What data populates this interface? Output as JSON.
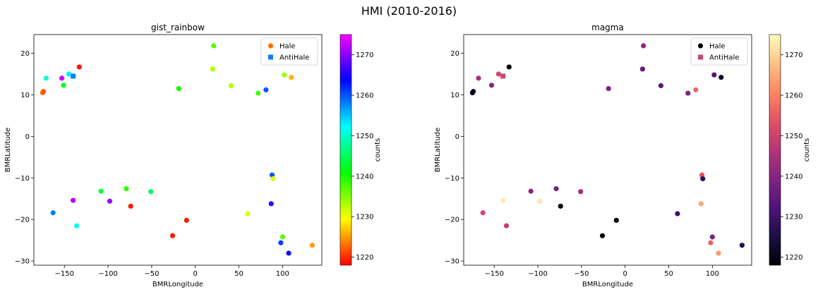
{
  "suptitle": "HMI (2010-2016)",
  "chart_data": [
    {
      "type": "scatter",
      "title": "gist_rainbow",
      "xlabel": "BMRLongitude",
      "ylabel": "BMRLatitude",
      "xlim": [
        -185,
        145
      ],
      "ylim": [
        -31,
        24.5
      ],
      "xticks": [
        -150,
        -100,
        -50,
        0,
        50,
        100
      ],
      "yticks": [
        -30,
        -20,
        -10,
        0,
        10,
        20
      ],
      "colormap": "gist_rainbow",
      "colorbar": {
        "label": "counts",
        "range": [
          1218,
          1275
        ],
        "ticks": [
          1220,
          1230,
          1240,
          1250,
          1260,
          1270
        ]
      },
      "legend": {
        "location": "upper right",
        "entries": [
          {
            "label": "Hale",
            "marker": "circle"
          },
          {
            "label": "AntiHale",
            "marker": "square"
          }
        ]
      },
      "series": [
        {
          "name": "Hale",
          "marker": "circle",
          "points": [
            {
              "x": -175,
              "y": 10.5,
              "counts": 1223
            },
            {
              "x": -174,
              "y": 10.8,
              "counts": 1222
            },
            {
              "x": -171,
              "y": 14,
              "counts": 1250
            },
            {
              "x": -153,
              "y": 14,
              "counts": 1273
            },
            {
              "x": -151,
              "y": 12.3,
              "counts": 1242
            },
            {
              "x": -145,
              "y": 15,
              "counts": 1253
            },
            {
              "x": -133,
              "y": 16.7,
              "counts": 1219
            },
            {
              "x": -19,
              "y": 11.5,
              "counts": 1240
            },
            {
              "x": 20,
              "y": 16.2,
              "counts": 1233
            },
            {
              "x": 21,
              "y": 21.8,
              "counts": 1237
            },
            {
              "x": 41,
              "y": 12.2,
              "counts": 1233
            },
            {
              "x": 72,
              "y": 10.4,
              "counts": 1238
            },
            {
              "x": 81,
              "y": 11.2,
              "counts": 1260
            },
            {
              "x": 102,
              "y": 14.8,
              "counts": 1234
            },
            {
              "x": 110,
              "y": 14.2,
              "counts": 1226
            },
            {
              "x": -163,
              "y": -18.4,
              "counts": 1258
            },
            {
              "x": -140,
              "y": -15.4,
              "counts": 1272
            },
            {
              "x": -136,
              "y": -21.5,
              "counts": 1252
            },
            {
              "x": -108,
              "y": -13.2,
              "counts": 1244
            },
            {
              "x": -98,
              "y": -15.6,
              "counts": 1271
            },
            {
              "x": -79,
              "y": -12.6,
              "counts": 1239
            },
            {
              "x": -74,
              "y": -16.8,
              "counts": 1219
            },
            {
              "x": -51,
              "y": -13.3,
              "counts": 1245
            },
            {
              "x": -26,
              "y": -23.9,
              "counts": 1219
            },
            {
              "x": -10,
              "y": -20.2,
              "counts": 1219
            },
            {
              "x": 60,
              "y": -18.6,
              "counts": 1231
            },
            {
              "x": 87,
              "y": -16.2,
              "counts": 1266
            },
            {
              "x": 88,
              "y": -9.3,
              "counts": 1260
            },
            {
              "x": 89,
              "y": -10.2,
              "counts": 1231
            },
            {
              "x": 98,
              "y": -25.6,
              "counts": 1261
            },
            {
              "x": 100,
              "y": -24.2,
              "counts": 1237
            },
            {
              "x": 107,
              "y": -28.1,
              "counts": 1263
            },
            {
              "x": 134,
              "y": -26.2,
              "counts": 1225
            }
          ]
        },
        {
          "name": "AntiHale",
          "marker": "square",
          "points": [
            {
              "x": -140,
              "y": 14.5,
              "counts": 1258
            }
          ]
        }
      ]
    },
    {
      "type": "scatter",
      "title": "magma",
      "xlabel": "BMRLongitude",
      "ylabel": "BMRLatitude",
      "xlim": [
        -185,
        145
      ],
      "ylim": [
        -31,
        24.5
      ],
      "xticks": [
        -150,
        -100,
        -50,
        0,
        50,
        100
      ],
      "yticks": [
        -30,
        -20,
        -10,
        0,
        10,
        20
      ],
      "colormap": "magma",
      "colorbar": {
        "label": "counts",
        "range": [
          1218,
          1275
        ],
        "ticks": [
          1220,
          1230,
          1240,
          1250,
          1260,
          1270
        ]
      },
      "legend": {
        "location": "upper right",
        "entries": [
          {
            "label": "Hale",
            "marker": "circle"
          },
          {
            "label": "AntiHale",
            "marker": "square"
          }
        ]
      },
      "series": [
        {
          "name": "Hale",
          "marker": "circle",
          "points": [
            {
              "x": -175,
              "y": 10.5,
              "counts": 1219
            },
            {
              "x": -174,
              "y": 10.8,
              "counts": 1220
            },
            {
              "x": -168,
              "y": 14,
              "counts": 1244
            },
            {
              "x": -153,
              "y": 12.3,
              "counts": 1240
            },
            {
              "x": -145,
              "y": 15,
              "counts": 1250
            },
            {
              "x": -133,
              "y": 16.7,
              "counts": 1218
            },
            {
              "x": -19,
              "y": 11.5,
              "counts": 1239
            },
            {
              "x": 20,
              "y": 16.2,
              "counts": 1236
            },
            {
              "x": 21,
              "y": 21.8,
              "counts": 1241
            },
            {
              "x": 41,
              "y": 12.2,
              "counts": 1234
            },
            {
              "x": 72,
              "y": 10.4,
              "counts": 1239
            },
            {
              "x": 81,
              "y": 11.2,
              "counts": 1257
            },
            {
              "x": 102,
              "y": 14.8,
              "counts": 1233
            },
            {
              "x": 110,
              "y": 14.2,
              "counts": 1222
            },
            {
              "x": -163,
              "y": -18.4,
              "counts": 1251
            },
            {
              "x": -140,
              "y": -15.4,
              "counts": 1273
            },
            {
              "x": -136,
              "y": -21.5,
              "counts": 1249
            },
            {
              "x": -108,
              "y": -13.2,
              "counts": 1240
            },
            {
              "x": -98,
              "y": -15.6,
              "counts": 1272
            },
            {
              "x": -79,
              "y": -12.6,
              "counts": 1238
            },
            {
              "x": -74,
              "y": -16.8,
              "counts": 1219
            },
            {
              "x": -51,
              "y": -13.3,
              "counts": 1244
            },
            {
              "x": -26,
              "y": -23.9,
              "counts": 1219
            },
            {
              "x": -10,
              "y": -20.2,
              "counts": 1218
            },
            {
              "x": 60,
              "y": -18.6,
              "counts": 1230
            },
            {
              "x": 88,
              "y": -9.3,
              "counts": 1254
            },
            {
              "x": 89,
              "y": -10.2,
              "counts": 1228
            },
            {
              "x": 87,
              "y": -16.2,
              "counts": 1265
            },
            {
              "x": 98,
              "y": -25.6,
              "counts": 1256
            },
            {
              "x": 100,
              "y": -24.2,
              "counts": 1238
            },
            {
              "x": 107,
              "y": -28.1,
              "counts": 1263
            },
            {
              "x": 134,
              "y": -26.2,
              "counts": 1226
            }
          ]
        },
        {
          "name": "AntiHale",
          "marker": "square",
          "points": [
            {
              "x": -140,
              "y": 14.5,
              "counts": 1250
            }
          ]
        }
      ]
    }
  ]
}
